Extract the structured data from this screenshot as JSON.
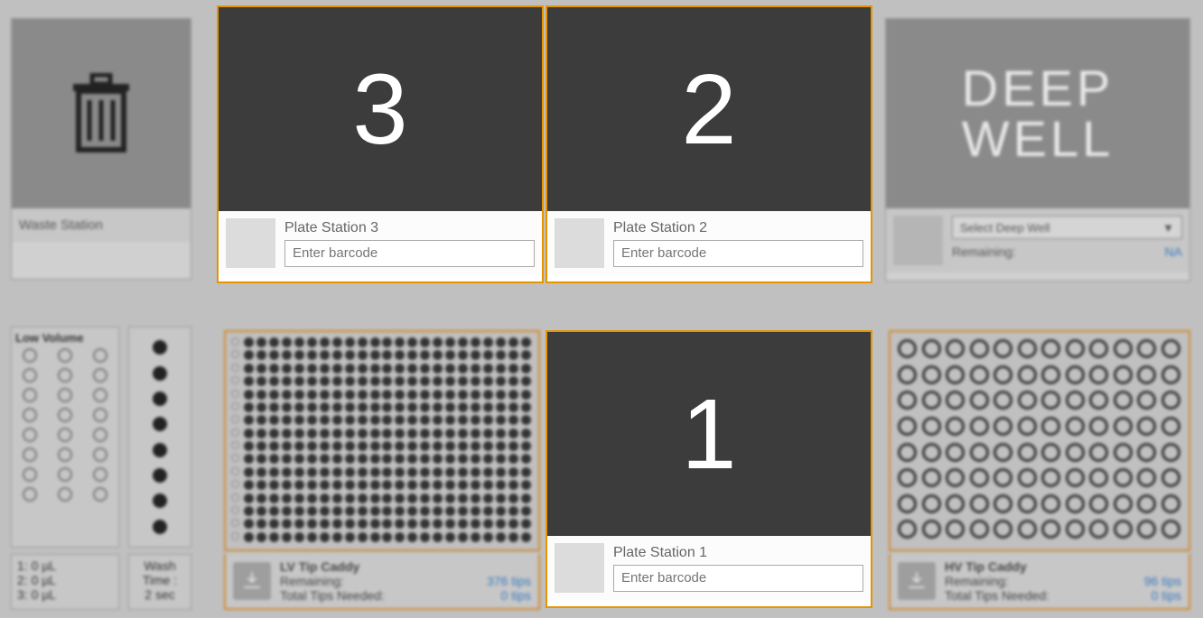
{
  "waste": {
    "label": "Waste Station"
  },
  "lowVolume": {
    "title": "Low Volume",
    "rows": 8,
    "cols": 3,
    "values": [
      "1: 0 µL",
      "2: 0 µL",
      "3: 0 µL"
    ]
  },
  "wash": {
    "dots": 8,
    "label": "Wash",
    "time_label": "Time :",
    "time_value": "2 sec"
  },
  "plates": {
    "p3": {
      "number": "3",
      "label": "Plate Station 3",
      "placeholder": "Enter barcode"
    },
    "p2": {
      "number": "2",
      "label": "Plate Station 2",
      "placeholder": "Enter barcode"
    },
    "p1": {
      "number": "1",
      "label": "Plate Station 1",
      "placeholder": "Enter barcode"
    }
  },
  "deepWell": {
    "title": "DEEP WELL",
    "title1": "DEEP",
    "title2": "WELL",
    "select_placeholder": "Select Deep Well",
    "remaining_label": "Remaining:",
    "remaining_value": "NA"
  },
  "lvCaddy": {
    "title": "LV Tip Caddy",
    "rows": 16,
    "cols": 24,
    "remaining_label": "Remaining:",
    "remaining_value": "376",
    "remaining_unit": "tips",
    "needed_label": "Total Tips Needed:",
    "needed_value": "0",
    "needed_unit": "tips",
    "empty_first_col": true
  },
  "hvCaddy": {
    "title": "HV Tip Caddy",
    "rows": 8,
    "cols": 12,
    "remaining_label": "Remaining:",
    "remaining_value": "96",
    "remaining_unit": "tips",
    "needed_label": "Total Tips Needed:",
    "needed_value": "0",
    "needed_unit": "tips"
  },
  "colors": {
    "accent_orange": "#e69500",
    "accent_orange_dim": "#d08a2e",
    "link_blue": "#3a7bbf",
    "plate_bg": "#3c3c3c",
    "panel_bg": "#c7c7c7",
    "page_bg": "#c0c0c0"
  }
}
